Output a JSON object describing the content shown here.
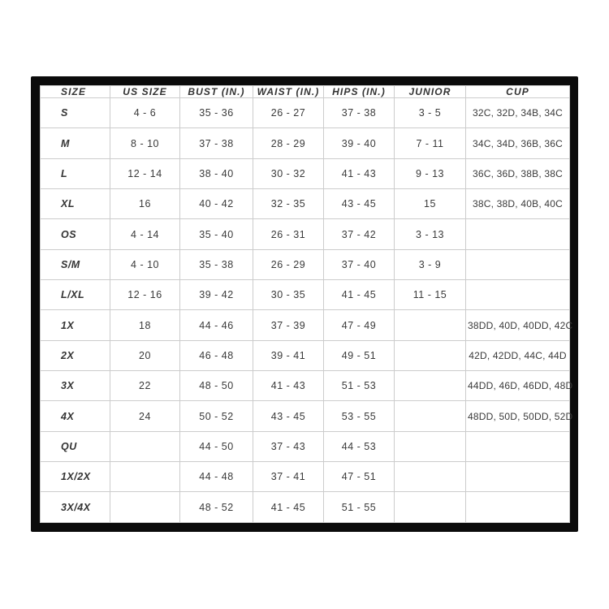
{
  "chart_data": {
    "type": "table",
    "columns": [
      "SIZE",
      "US SIZE",
      "BUST (IN.)",
      "WAIST (IN.)",
      "HIPS (IN.)",
      "JUNIOR",
      "CUP"
    ],
    "rows": [
      [
        "S",
        "4 - 6",
        "35 - 36",
        "26 - 27",
        "37 - 38",
        "3 - 5",
        "32C, 32D, 34B, 34C"
      ],
      [
        "M",
        "8 - 10",
        "37 - 38",
        "28 - 29",
        "39 - 40",
        "7 - 11",
        "34C, 34D, 36B, 36C"
      ],
      [
        "L",
        "12 - 14",
        "38 - 40",
        "30 - 32",
        "41 - 43",
        "9 - 13",
        "36C, 36D, 38B, 38C"
      ],
      [
        "XL",
        "16",
        "40 - 42",
        "32 - 35",
        "43 - 45",
        "15",
        "38C, 38D, 40B, 40C"
      ],
      [
        "OS",
        "4 - 14",
        "35 - 40",
        "26 - 31",
        "37 - 42",
        "3 - 13",
        ""
      ],
      [
        "S/M",
        "4 - 10",
        "35 - 38",
        "26 - 29",
        "37 - 40",
        "3 - 9",
        ""
      ],
      [
        "L/XL",
        "12 - 16",
        "39 - 42",
        "30 - 35",
        "41 - 45",
        "11 - 15",
        ""
      ],
      [
        "1X",
        "18",
        "44 - 46",
        "37 - 39",
        "47 - 49",
        "",
        "38DD, 40D, 40DD, 42C"
      ],
      [
        "2X",
        "20",
        "46 - 48",
        "39 - 41",
        "49 - 51",
        "",
        "42D, 42DD, 44C, 44D"
      ],
      [
        "3X",
        "22",
        "48 - 50",
        "41 - 43",
        "51 - 53",
        "",
        "44DD, 46D, 46DD, 48D"
      ],
      [
        "4X",
        "24",
        "50 - 52",
        "43 - 45",
        "53 - 55",
        "",
        "48DD, 50D, 50DD, 52D"
      ],
      [
        "QU",
        "",
        "44 - 50",
        "37 - 43",
        "44 - 53",
        "",
        ""
      ],
      [
        "1X/2X",
        "",
        "44 - 48",
        "37 - 41",
        "47 - 51",
        "",
        ""
      ],
      [
        "3X/4X",
        "",
        "48 - 52",
        "41 - 45",
        "51 - 55",
        "",
        ""
      ]
    ]
  },
  "colors": {
    "frame": "#0b0b0b",
    "grid": "#cccccc",
    "text": "#3a3a3a",
    "background": "#ffffff"
  }
}
